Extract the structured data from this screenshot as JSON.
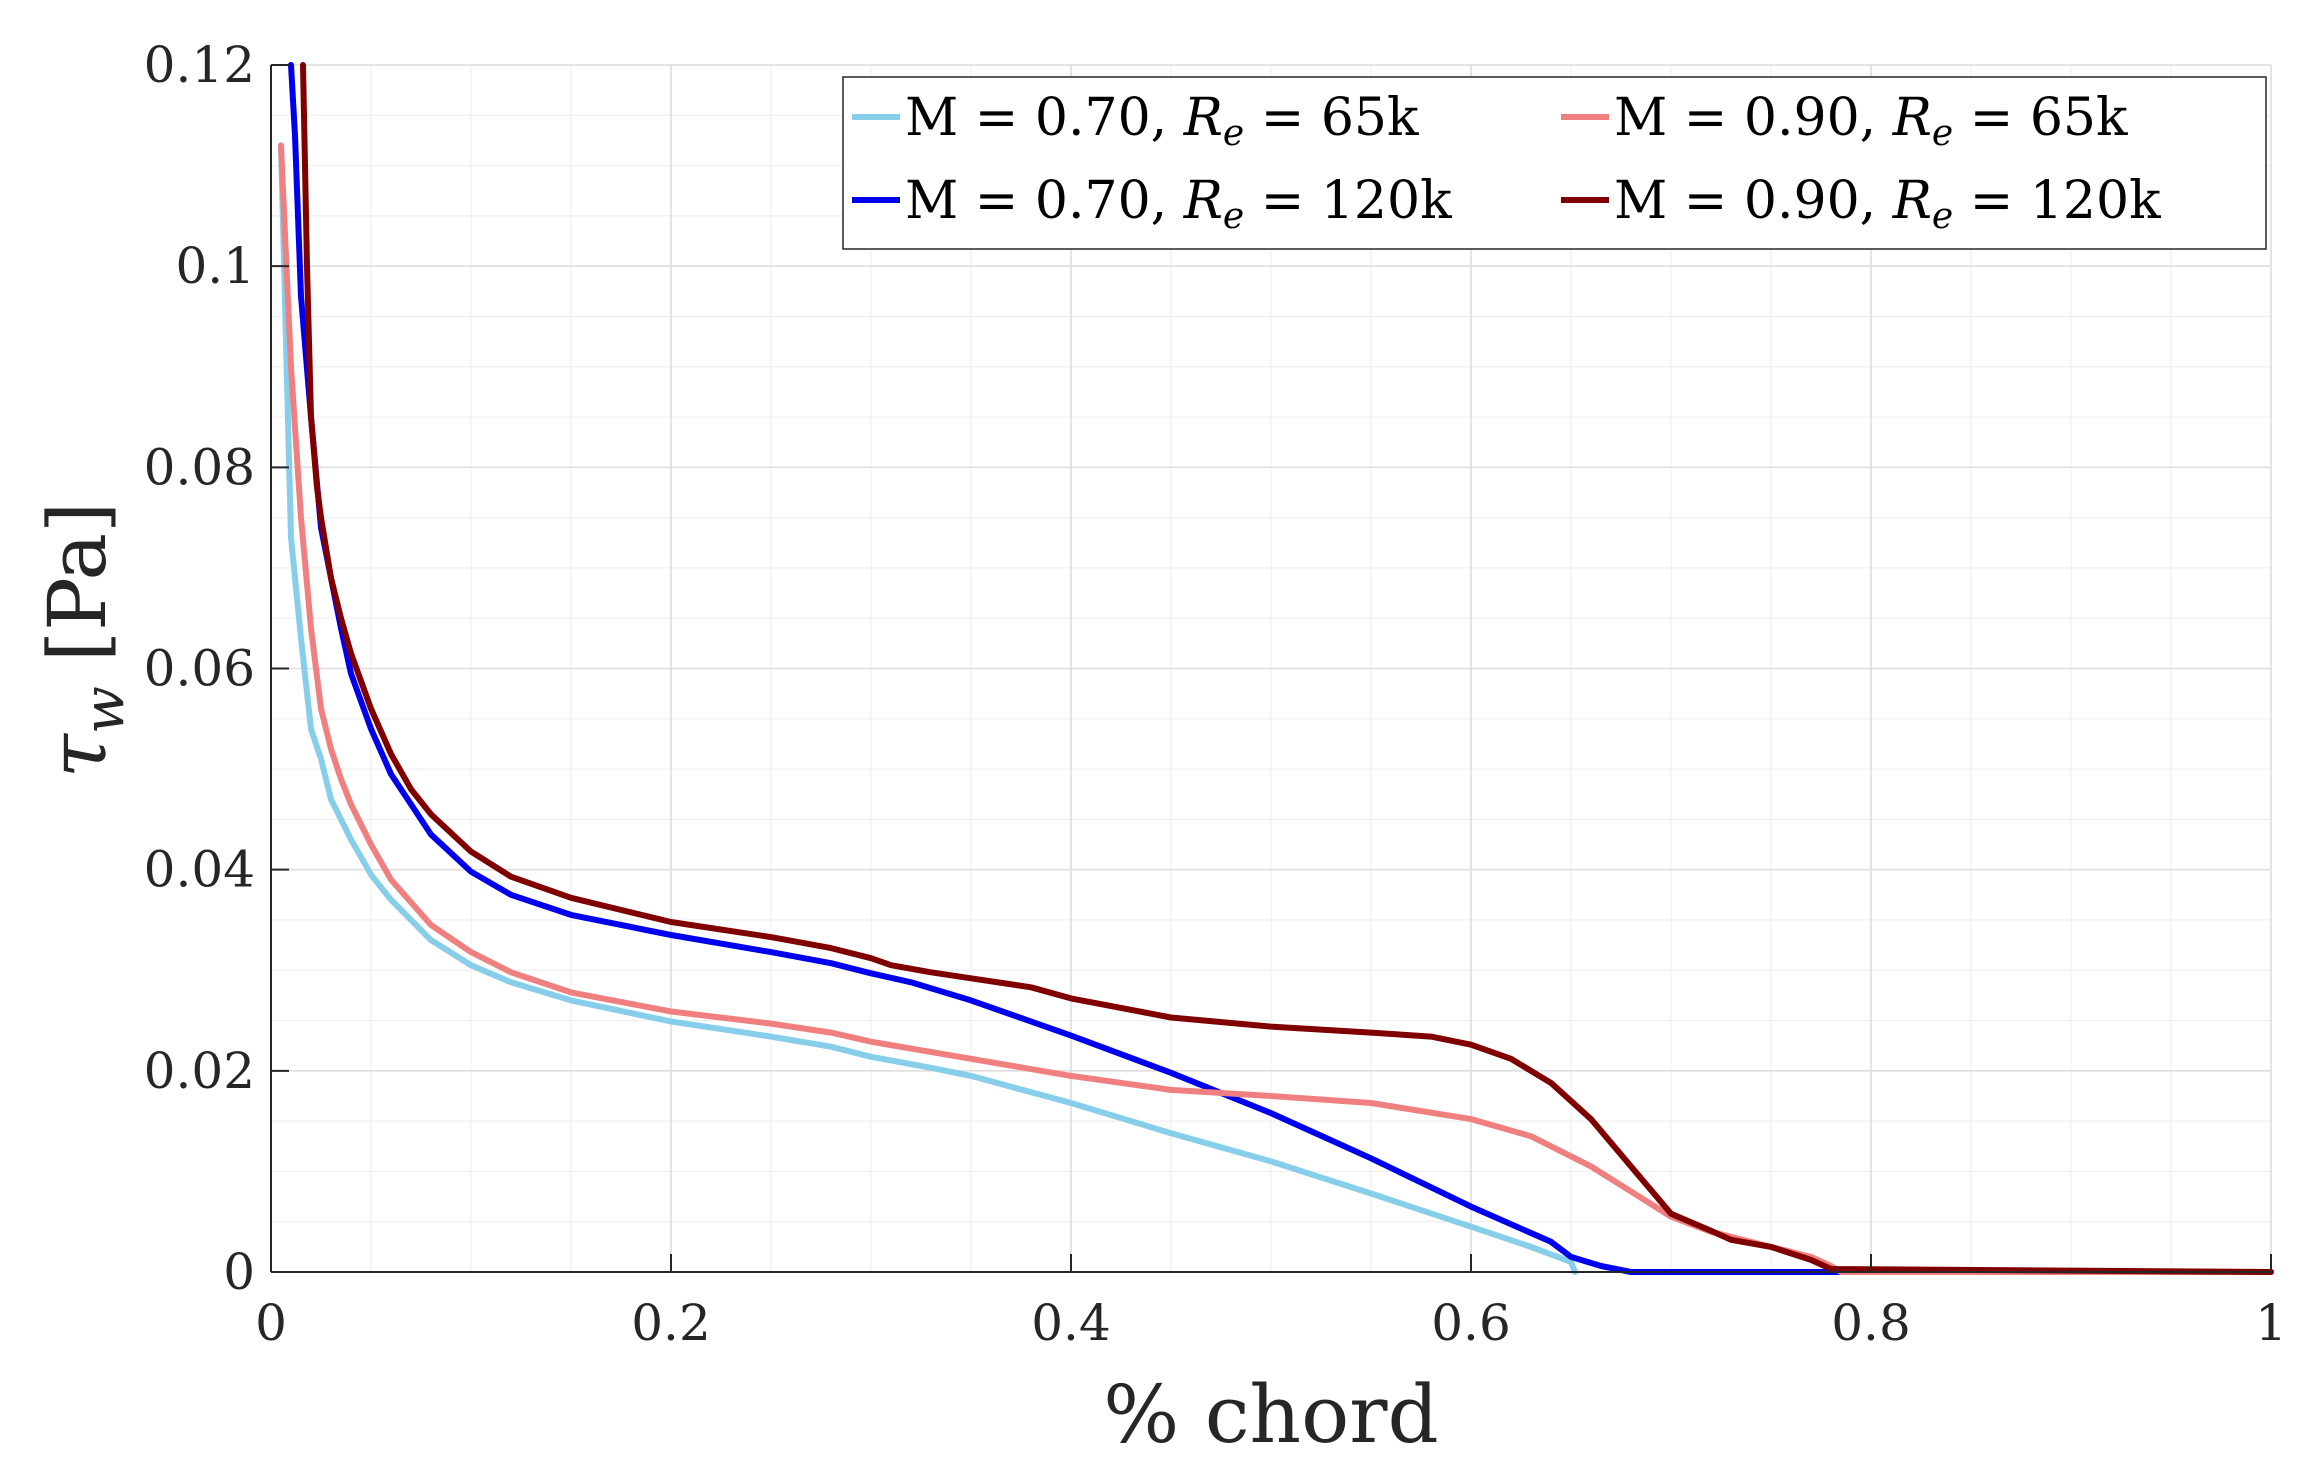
{
  "chart_data": {
    "type": "line",
    "title": "",
    "xlabel": "% chord",
    "ylabel": "τw [Pa]",
    "ylabel_parts": {
      "symbol": "τ",
      "subscript": "w",
      "unit": "[Pa]"
    },
    "xlim": [
      0,
      1
    ],
    "ylim": [
      0,
      0.12
    ],
    "grid": true,
    "minor_grid": true,
    "legend_position": "top-right",
    "x_ticks": [
      "0",
      "0.2",
      "0.4",
      "0.6",
      "0.8",
      "1"
    ],
    "y_ticks": [
      "0",
      "0.02",
      "0.04",
      "0.06",
      "0.08",
      "0.1",
      "0.12"
    ],
    "x_tick_values": [
      0,
      0.2,
      0.4,
      0.6,
      0.8,
      1
    ],
    "y_tick_values": [
      0,
      0.02,
      0.04,
      0.06,
      0.08,
      0.1,
      0.12
    ],
    "series": [
      {
        "name": "M = 0.70, Re = 65k",
        "legend": {
          "prefix": "M = 0.70, ",
          "var": "R",
          "sub": "e",
          "suffix": " = 65k"
        },
        "color": "#87ceeb",
        "x": [
          0.005,
          0.01,
          0.015,
          0.02,
          0.025,
          0.03,
          0.04,
          0.05,
          0.06,
          0.08,
          0.1,
          0.12,
          0.15,
          0.2,
          0.25,
          0.28,
          0.3,
          0.33,
          0.35,
          0.4,
          0.45,
          0.5,
          0.55,
          0.6,
          0.63,
          0.65,
          0.652
        ],
        "y": [
          0.112,
          0.073,
          0.063,
          0.054,
          0.051,
          0.047,
          0.043,
          0.0395,
          0.037,
          0.033,
          0.0305,
          0.0288,
          0.027,
          0.0249,
          0.0234,
          0.0224,
          0.0214,
          0.0203,
          0.0195,
          0.0168,
          0.0138,
          0.011,
          0.0078,
          0.0045,
          0.0025,
          0.001,
          0.0
        ]
      },
      {
        "name": "M = 0.70, Re = 120k",
        "legend": {
          "prefix": "M = 0.70, ",
          "var": "R",
          "sub": "e",
          "suffix": " = 120k"
        },
        "color": "#0000ee",
        "x": [
          0.01,
          0.012,
          0.015,
          0.02,
          0.025,
          0.03,
          0.035,
          0.04,
          0.05,
          0.06,
          0.08,
          0.1,
          0.12,
          0.15,
          0.2,
          0.25,
          0.28,
          0.3,
          0.32,
          0.35,
          0.4,
          0.45,
          0.5,
          0.55,
          0.6,
          0.64,
          0.65,
          0.665,
          0.68,
          1.0
        ],
        "y": [
          0.12,
          0.113,
          0.097,
          0.085,
          0.074,
          0.069,
          0.064,
          0.0595,
          0.054,
          0.0495,
          0.0435,
          0.0398,
          0.0375,
          0.0355,
          0.0335,
          0.0318,
          0.0307,
          0.0297,
          0.0288,
          0.027,
          0.0235,
          0.0198,
          0.0158,
          0.0113,
          0.0065,
          0.003,
          0.0015,
          0.0006,
          0.0,
          0.0
        ]
      },
      {
        "name": "M = 0.90, Re = 65k",
        "legend": {
          "prefix": "M = 0.90, ",
          "var": "R",
          "sub": "e",
          "suffix": " = 65k"
        },
        "color": "#f08080",
        "x": [
          0.005,
          0.01,
          0.015,
          0.02,
          0.025,
          0.03,
          0.035,
          0.04,
          0.05,
          0.06,
          0.08,
          0.1,
          0.12,
          0.15,
          0.2,
          0.25,
          0.28,
          0.3,
          0.35,
          0.4,
          0.45,
          0.5,
          0.55,
          0.6,
          0.63,
          0.66,
          0.68,
          0.7,
          0.72,
          0.75,
          0.77,
          0.78,
          0.785,
          0.8,
          1.0
        ],
        "y": [
          0.112,
          0.09,
          0.075,
          0.064,
          0.056,
          0.052,
          0.049,
          0.0465,
          0.0425,
          0.039,
          0.0345,
          0.0318,
          0.0298,
          0.0278,
          0.0259,
          0.0247,
          0.0238,
          0.0229,
          0.0212,
          0.0195,
          0.0181,
          0.0175,
          0.0168,
          0.0152,
          0.0135,
          0.0105,
          0.008,
          0.0055,
          0.004,
          0.0025,
          0.0015,
          0.0006,
          0.0,
          0.0,
          0.0
        ]
      },
      {
        "name": "M = 0.90, Re = 120k",
        "legend": {
          "prefix": "M = 0.90, ",
          "var": "R",
          "sub": "e",
          "suffix": " = 120k"
        },
        "color": "#800000",
        "x": [
          0.016,
          0.018,
          0.02,
          0.023,
          0.025,
          0.03,
          0.035,
          0.04,
          0.05,
          0.06,
          0.07,
          0.08,
          0.1,
          0.12,
          0.15,
          0.2,
          0.25,
          0.28,
          0.3,
          0.31,
          0.33,
          0.35,
          0.38,
          0.4,
          0.45,
          0.5,
          0.55,
          0.58,
          0.6,
          0.62,
          0.64,
          0.66,
          0.68,
          0.7,
          0.72,
          0.73,
          0.75,
          0.77,
          0.78,
          1.0
        ],
        "y": [
          0.12,
          0.1,
          0.085,
          0.078,
          0.075,
          0.069,
          0.065,
          0.0615,
          0.056,
          0.0515,
          0.048,
          0.0455,
          0.0418,
          0.0393,
          0.0372,
          0.0348,
          0.0333,
          0.0322,
          0.0312,
          0.0305,
          0.0298,
          0.0292,
          0.0283,
          0.0272,
          0.0253,
          0.0244,
          0.0238,
          0.0234,
          0.0226,
          0.0212,
          0.0188,
          0.0152,
          0.0105,
          0.0058,
          0.0041,
          0.0032,
          0.0025,
          0.0012,
          0.0003,
          0.0
        ]
      }
    ]
  }
}
